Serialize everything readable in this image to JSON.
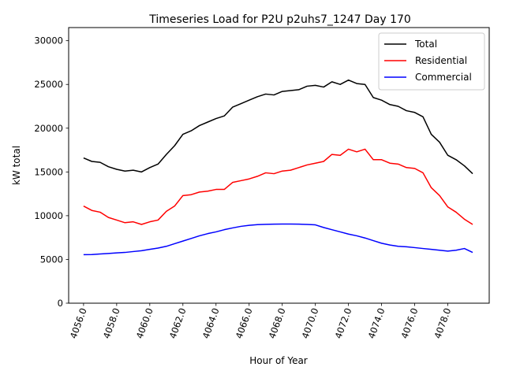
{
  "chart_data": {
    "type": "line",
    "title": "Timeseries Load for P2U p2uhs7_1247  Day 170",
    "xlabel": "Hour of Year",
    "ylabel": "kW total",
    "xlim": [
      4055.1,
      4080.5
    ],
    "ylim": [
      0,
      31500
    ],
    "xticks": [
      4056,
      4058,
      4060,
      4062,
      4064,
      4066,
      4068,
      4070,
      4072,
      4074,
      4076,
      4078
    ],
    "xtick_labels": [
      "4056.0",
      "4058.0",
      "4060.0",
      "4062.0",
      "4064.0",
      "4066.0",
      "4068.0",
      "4070.0",
      "4072.0",
      "4074.0",
      "4076.0",
      "4078.0"
    ],
    "yticks": [
      0,
      5000,
      10000,
      15000,
      20000,
      25000,
      30000
    ],
    "ytick_labels": [
      "0",
      "5000",
      "10000",
      "15000",
      "20000",
      "25000",
      "30000"
    ],
    "legend_position": "top-right",
    "x": [
      4056.0,
      4056.5,
      4057.0,
      4057.5,
      4058.0,
      4058.5,
      4059.0,
      4059.5,
      4060.0,
      4060.5,
      4061.0,
      4061.5,
      4062.0,
      4062.5,
      4063.0,
      4063.5,
      4064.0,
      4064.5,
      4065.0,
      4065.5,
      4066.0,
      4066.5,
      4067.0,
      4067.5,
      4068.0,
      4068.5,
      4069.0,
      4069.5,
      4070.0,
      4070.5,
      4071.0,
      4071.5,
      4072.0,
      4072.5,
      4073.0,
      4073.5,
      4074.0,
      4074.5,
      4075.0,
      4075.5,
      4076.0,
      4076.5,
      4077.0,
      4077.5,
      4078.0,
      4078.5,
      4079.0,
      4079.5
    ],
    "series": [
      {
        "name": "Total",
        "color": "#000000",
        "values": [
          16600,
          16200,
          16100,
          15600,
          15300,
          15100,
          15200,
          15000,
          15500,
          15900,
          17000,
          18000,
          19300,
          19700,
          20300,
          20700,
          21100,
          21400,
          22400,
          22800,
          23200,
          23600,
          23900,
          23800,
          24200,
          24300,
          24400,
          24800,
          24900,
          24700,
          25300,
          25000,
          25500,
          25100,
          25000,
          23500,
          23200,
          22700,
          22500,
          22000,
          21800,
          21300,
          19300,
          18400,
          16900,
          16400,
          15700,
          14800
        ]
      },
      {
        "name": "Residential",
        "color": "#ff0000",
        "values": [
          11100,
          10600,
          10400,
          9800,
          9500,
          9200,
          9300,
          9000,
          9300,
          9500,
          10500,
          11100,
          12300,
          12400,
          12700,
          12800,
          13000,
          13000,
          13800,
          14000,
          14200,
          14500,
          14900,
          14800,
          15100,
          15200,
          15500,
          15800,
          16000,
          16200,
          17000,
          16900,
          17600,
          17300,
          17600,
          16400,
          16400,
          16000,
          15900,
          15500,
          15400,
          14900,
          13200,
          12300,
          11000,
          10400,
          9600,
          9000
        ]
      },
      {
        "name": "Commercial",
        "color": "#0000ff",
        "values": [
          5550,
          5560,
          5620,
          5680,
          5750,
          5800,
          5900,
          6000,
          6150,
          6300,
          6500,
          6800,
          7100,
          7400,
          7700,
          7950,
          8150,
          8400,
          8600,
          8780,
          8900,
          8980,
          9010,
          9030,
          9050,
          9050,
          9030,
          9000,
          8950,
          8650,
          8400,
          8150,
          7900,
          7700,
          7450,
          7150,
          6850,
          6650,
          6500,
          6450,
          6350,
          6250,
          6150,
          6050,
          5950,
          6050,
          6250,
          5800
        ]
      }
    ]
  }
}
